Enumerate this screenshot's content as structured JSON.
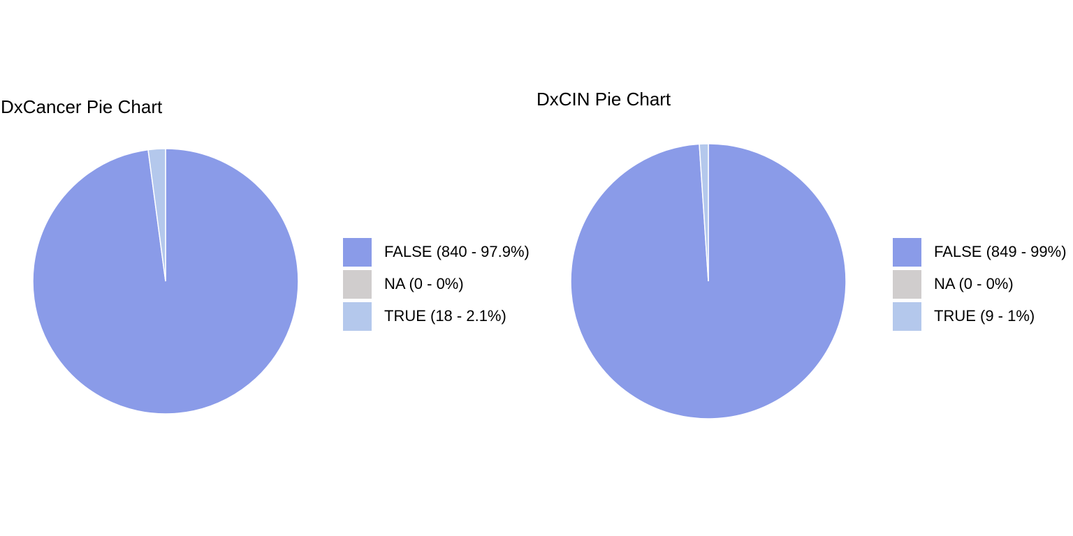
{
  "chart_data": [
    {
      "type": "pie",
      "title": "DxCancer Pie Chart",
      "start_angle": "12 o'clock",
      "direction": "clockwise",
      "legend_position": "right",
      "slices": [
        {
          "label": "FALSE (840 - 97.9%)",
          "category": "FALSE",
          "count": 840,
          "percent": 97.9,
          "color": "#8a9be8"
        },
        {
          "label": "NA (0 - 0%)",
          "category": "NA",
          "count": 0,
          "percent": 0,
          "color": "#d0cdcd"
        },
        {
          "label": "TRUE (18 - 2.1%)",
          "category": "TRUE",
          "count": 18,
          "percent": 2.1,
          "color": "#b4c8ec"
        }
      ]
    },
    {
      "type": "pie",
      "title": "DxCIN Pie Chart",
      "start_angle": "12 o'clock",
      "direction": "clockwise",
      "legend_position": "right",
      "slices": [
        {
          "label": "FALSE (849 - 99%)",
          "category": "FALSE",
          "count": 849,
          "percent": 99,
          "color": "#8a9be8"
        },
        {
          "label": "NA (0 - 0%)",
          "category": "NA",
          "count": 0,
          "percent": 0,
          "color": "#d0cdcd"
        },
        {
          "label": "TRUE (9 - 1%)",
          "category": "TRUE",
          "count": 9,
          "percent": 1,
          "color": "#b4c8ec"
        }
      ]
    }
  ]
}
